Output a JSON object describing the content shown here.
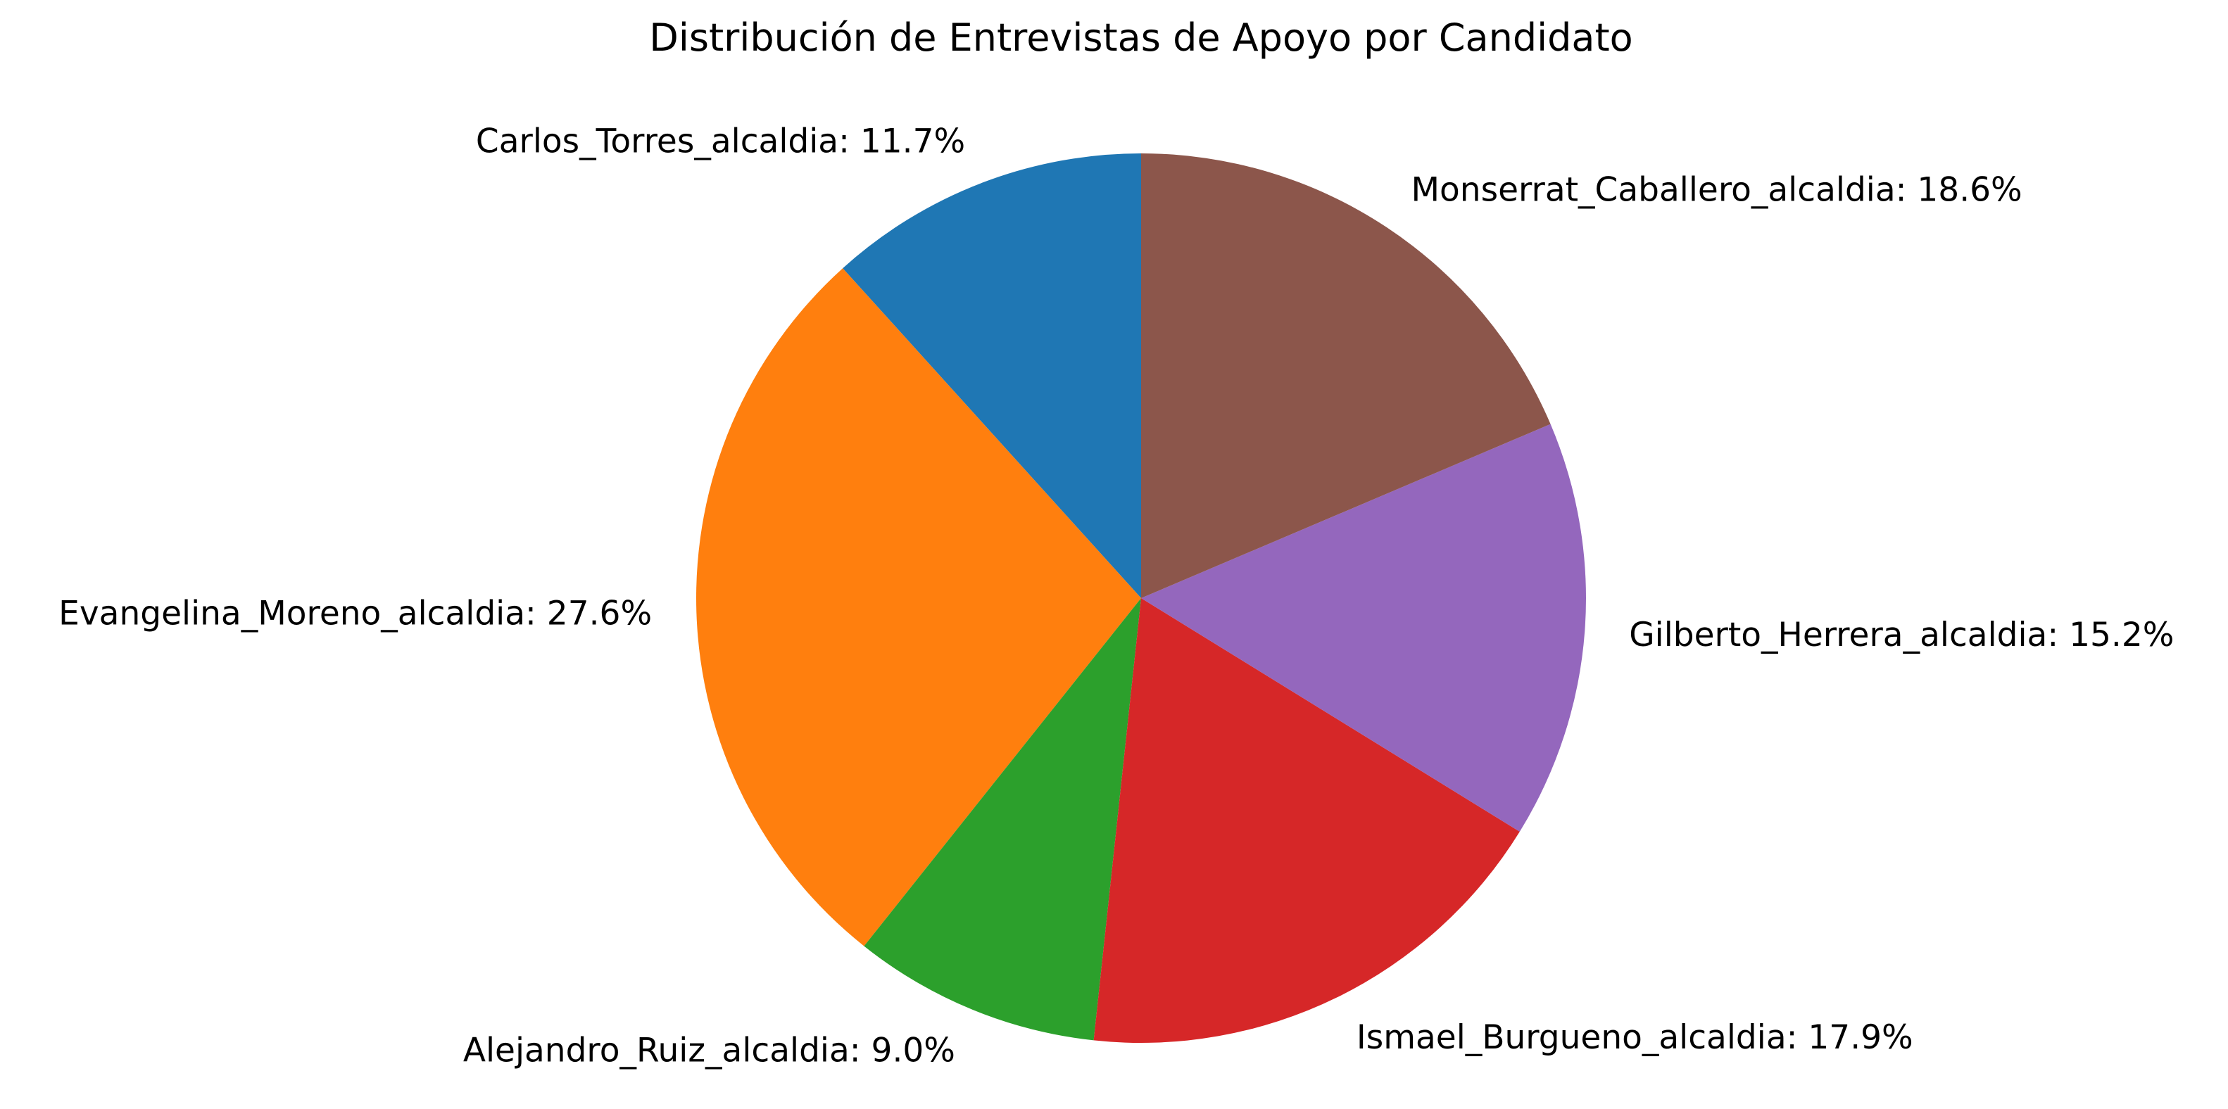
{
  "chart_data": {
    "type": "pie",
    "title": "Distribución de Entrevistas de Apoyo por Candidato",
    "start_angle_deg": 90,
    "direction": "counterclockwise",
    "slices": [
      {
        "label": "Carlos_Torres_alcaldia",
        "value": 11.7,
        "display": "Carlos_Torres_alcaldia: 11.7%",
        "color": "#1f77b4"
      },
      {
        "label": "Evangelina_Moreno_alcaldia",
        "value": 27.6,
        "display": "Evangelina_Moreno_alcaldia: 27.6%",
        "color": "#ff7f0e"
      },
      {
        "label": "Alejandro_Ruiz_alcaldia",
        "value": 9.0,
        "display": "Alejandro_Ruiz_alcaldia: 9.0%",
        "color": "#2ca02c"
      },
      {
        "label": "Ismael_Burgueno_alcaldia",
        "value": 17.9,
        "display": "Ismael_Burgueno_alcaldia: 17.9%",
        "color": "#d62728"
      },
      {
        "label": "Gilberto_Herrera_alcaldia",
        "value": 15.2,
        "display": "Gilberto_Herrera_alcaldia: 15.2%",
        "color": "#9467bd"
      },
      {
        "label": "Monserrat_Caballero_alcaldia",
        "value": 18.6,
        "display": "Monserrat_Caballero_alcaldia: 18.6%",
        "color": "#8c564b"
      }
    ]
  }
}
